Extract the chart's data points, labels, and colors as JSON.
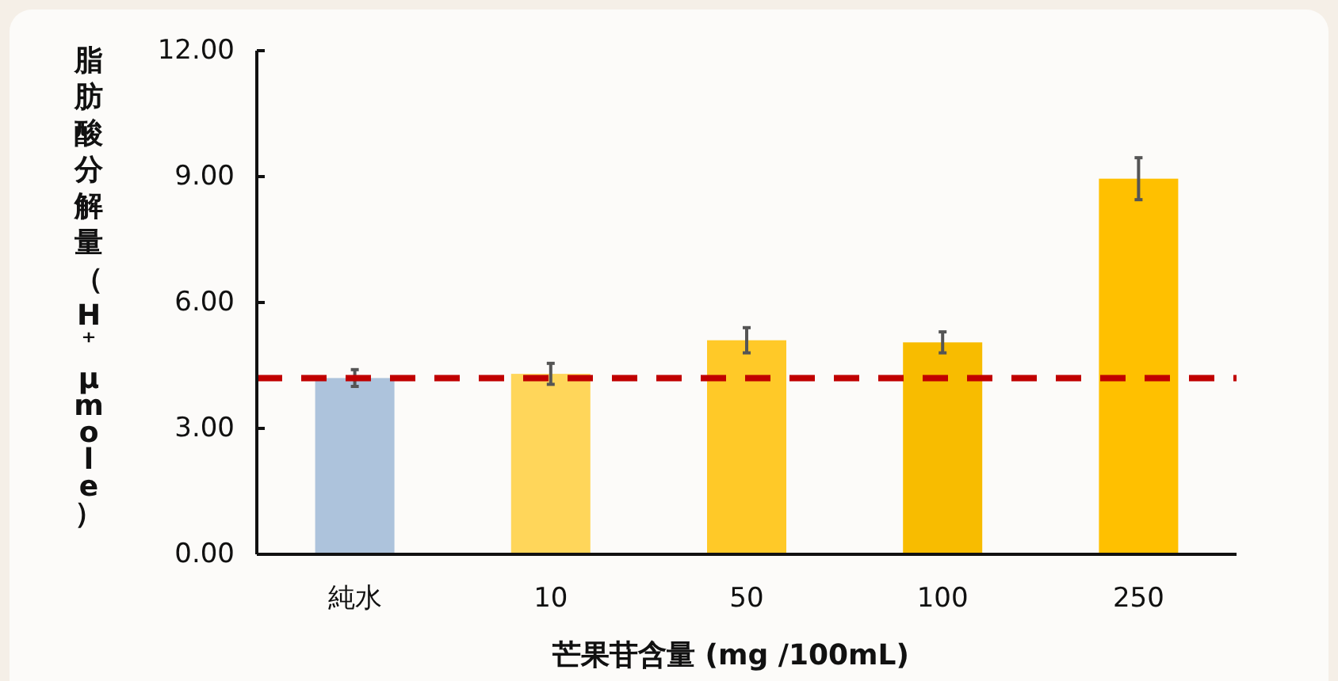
{
  "chart_data": {
    "type": "bar",
    "xlabel": "芒果苷含量 (mg /100mL)",
    "ylabel": "脂肪酸分解量（H⁺ µmole）",
    "categories": [
      "純水",
      "10",
      "50",
      "100",
      "250"
    ],
    "values": [
      4.2,
      4.3,
      5.1,
      5.05,
      8.95
    ],
    "errors": [
      0.2,
      0.25,
      0.3,
      0.25,
      0.5
    ],
    "colors": [
      "#adc3dc",
      "#ffd65a",
      "#ffc928",
      "#f8bc00",
      "#ffc000"
    ],
    "ylim": [
      0,
      12
    ],
    "yticks": [
      {
        "value": 0,
        "label": "0.00"
      },
      {
        "value": 3,
        "label": "3.00"
      },
      {
        "value": 6,
        "label": "6.00"
      },
      {
        "value": 9,
        "label": "9.00"
      },
      {
        "value": 12,
        "label": "12.00"
      }
    ],
    "ref_lines": [
      {
        "axis": "y",
        "value": 4.2,
        "color": "#c00000",
        "line_style": "dashed"
      }
    ],
    "grid": false
  }
}
